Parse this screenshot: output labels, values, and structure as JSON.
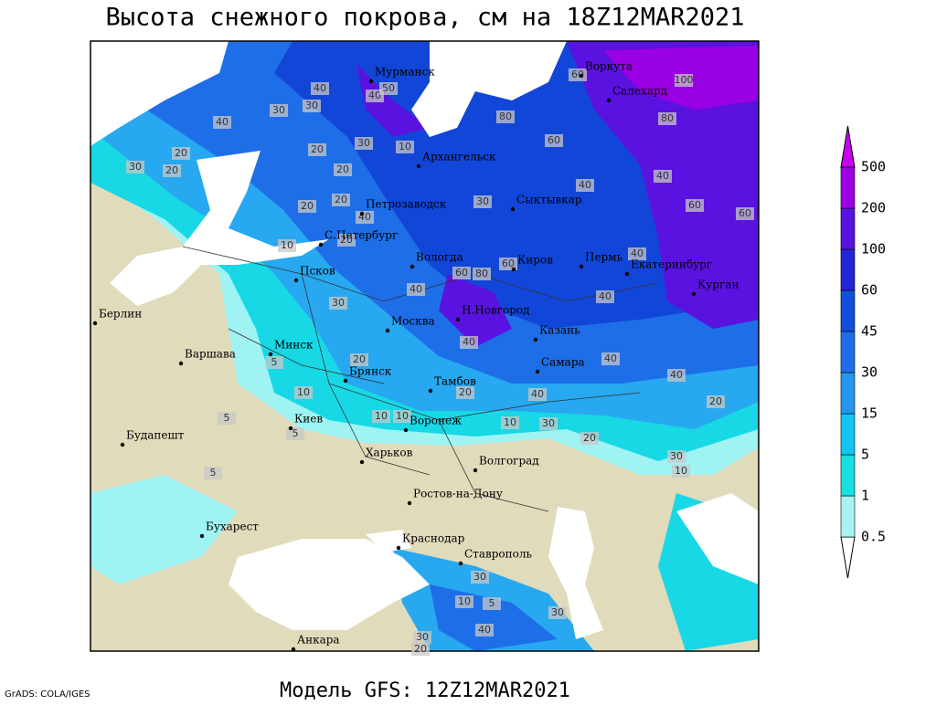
{
  "title": "Высота снежного покрова, см на 18Z12MAR2021",
  "footer": "Модель GFS: 12Z12MAR2021",
  "credit": "GrADS: COLA/IGES",
  "legend": {
    "levels": [
      0.5,
      1,
      5,
      15,
      30,
      45,
      60,
      100,
      200,
      500
    ]
  },
  "cities": [
    "Мурманск",
    "Воркута",
    "Салехард",
    "Архангельск",
    "Петрозаводск",
    "Сыктывкар",
    "С.Петербург",
    "Вологда",
    "Киров",
    "Пермь",
    "Екатеринбург",
    "Курган",
    "Псков",
    "Н.Новгород",
    "Казань",
    "Берлин",
    "Москва",
    "Минск",
    "Варшава",
    "Самара",
    "Брянск",
    "Тамбов",
    "Киев",
    "Воронеж",
    "Будапешт",
    "Харьков",
    "Волгоград",
    "Ростов-на-Дону",
    "Бухарест",
    "Краснодар",
    "Ставрополь",
    "Анкара"
  ],
  "contour_labels": [
    40,
    40,
    50,
    30,
    30,
    40,
    20,
    30,
    20,
    20,
    30,
    10,
    20,
    20,
    30,
    40,
    40,
    60,
    80,
    60,
    100,
    80,
    60,
    60,
    20,
    40,
    10,
    20,
    30,
    40,
    60,
    80,
    60,
    40,
    40,
    40,
    40,
    40,
    40,
    20,
    20,
    10,
    5,
    5,
    5,
    10,
    10,
    20,
    10,
    30,
    20,
    30,
    10,
    5,
    10,
    5,
    40,
    30,
    20,
    30,
    30
  ]
}
